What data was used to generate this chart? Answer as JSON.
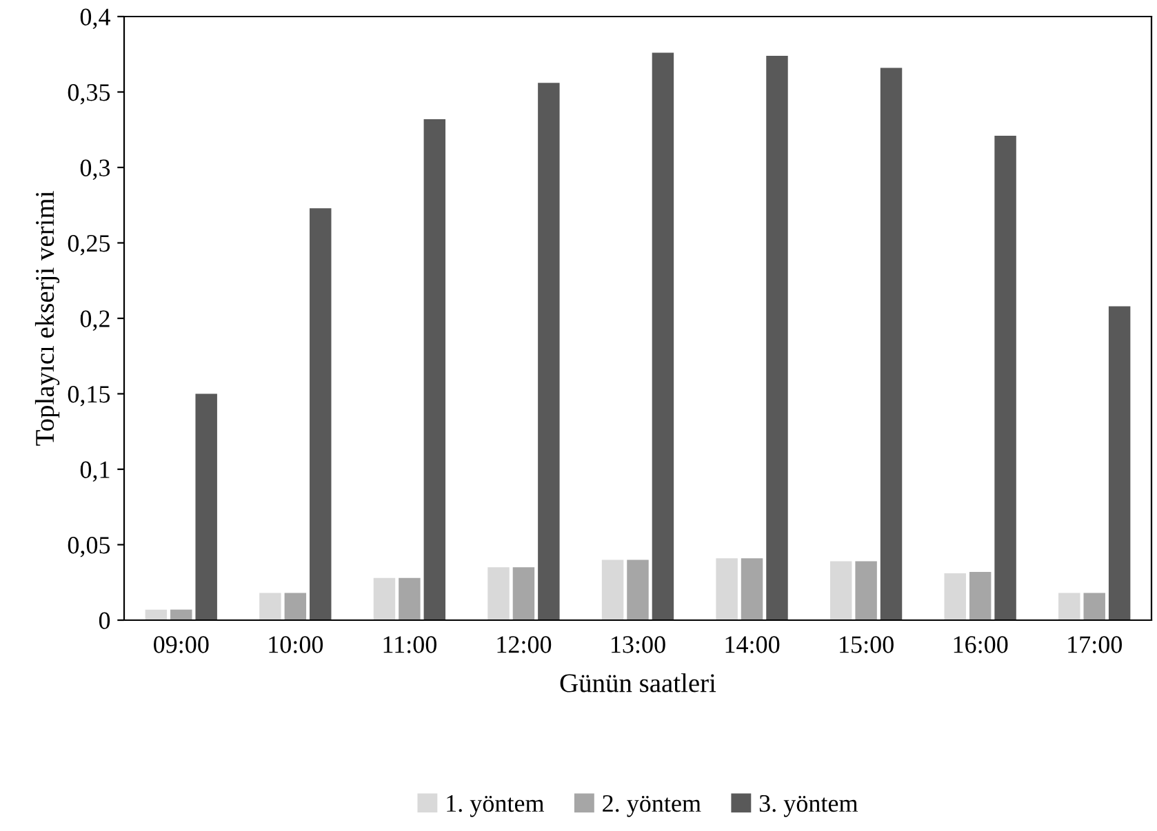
{
  "chart_data": {
    "type": "bar",
    "xlabel": "Günün saatleri",
    "ylabel": "Toplayıcı ekserji verimi",
    "categories": [
      "09:00",
      "10:00",
      "11:00",
      "12:00",
      "13:00",
      "14:00",
      "15:00",
      "16:00",
      "17:00"
    ],
    "series": [
      {
        "name": "1. yöntem",
        "color": "#d9d9d9",
        "values": [
          0.007,
          0.018,
          0.028,
          0.035,
          0.04,
          0.041,
          0.039,
          0.031,
          0.018
        ]
      },
      {
        "name": "2. yöntem",
        "color": "#a6a6a6",
        "values": [
          0.007,
          0.018,
          0.028,
          0.035,
          0.04,
          0.041,
          0.039,
          0.032,
          0.018
        ]
      },
      {
        "name": "3. yöntem",
        "color": "#595959",
        "values": [
          0.15,
          0.273,
          0.332,
          0.356,
          0.376,
          0.374,
          0.366,
          0.321,
          0.208
        ]
      }
    ],
    "ylim": [
      0,
      0.4
    ],
    "yticks": [
      {
        "value": 0,
        "label": "0"
      },
      {
        "value": 0.05,
        "label": "0,05"
      },
      {
        "value": 0.1,
        "label": "0,1"
      },
      {
        "value": 0.15,
        "label": "0,15"
      },
      {
        "value": 0.2,
        "label": "0,2"
      },
      {
        "value": 0.25,
        "label": "0,25"
      },
      {
        "value": 0.3,
        "label": "0,3"
      },
      {
        "value": 0.35,
        "label": "0,35"
      },
      {
        "value": 0.4,
        "label": "0,4"
      }
    ],
    "grid": false,
    "legend": "bottom"
  }
}
